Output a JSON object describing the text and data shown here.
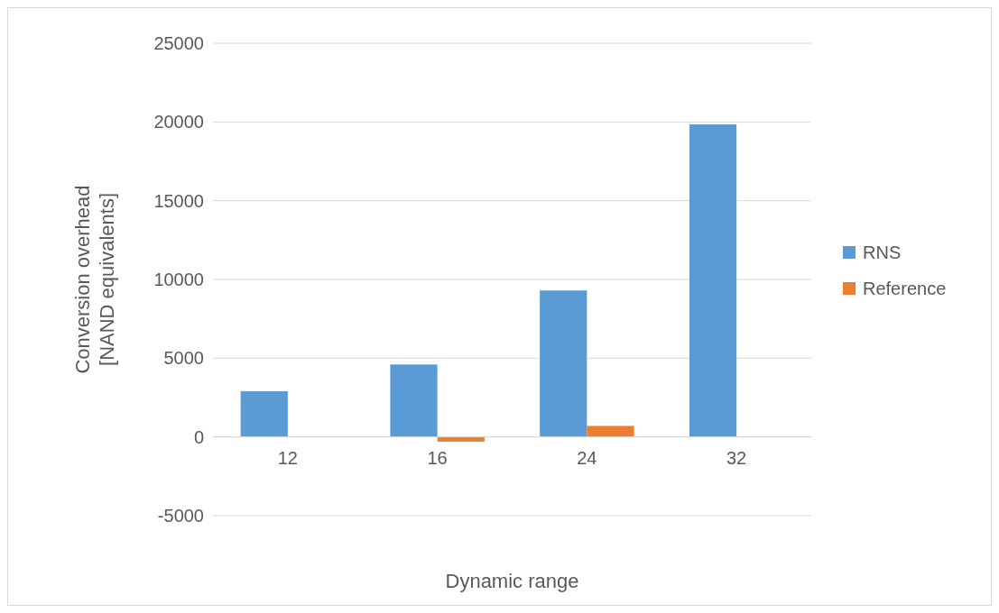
{
  "chart_data": {
    "type": "bar",
    "xlabel": "Dynamic range",
    "ylabel": "Conversion overhead [NAND equivalents]",
    "categories": [
      "12",
      "16",
      "24",
      "32"
    ],
    "series": [
      {
        "name": "RNS",
        "color": "#5b9bd5",
        "values": [
          2900,
          4600,
          9300,
          19850
        ]
      },
      {
        "name": "Reference",
        "color": "#ed7d31",
        "values": [
          0,
          -300,
          700,
          0
        ]
      }
    ],
    "ylim": [
      -5000,
      25000
    ],
    "yticks": [
      -5000,
      0,
      5000,
      10000,
      15000,
      20000,
      25000
    ],
    "grid": "y",
    "legend": "right"
  }
}
